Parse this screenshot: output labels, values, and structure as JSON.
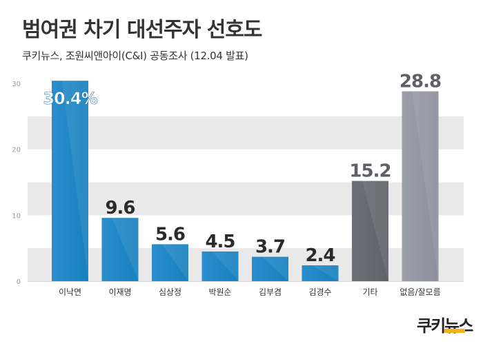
{
  "title": "범여권 차기 대선주자 선호도",
  "subtitle": "쿠키뉴스, 조원씨앤아이(C&I) 공동조사 (12.04 발표)",
  "logo": {
    "text": "쿠키뉴스",
    "accent_color": "#f6b21a"
  },
  "colors": {
    "blue": "#2b8dcd",
    "blue_dark": "#1780bd",
    "gray_dark": "#6d6f78",
    "gray_light": "#9d9eab",
    "band": "#e9e9ea",
    "label_blue": "#1c7fc0",
    "label_dark": "#2b2b2b",
    "label_gray": "#5f6066"
  },
  "chart_data": {
    "type": "bar",
    "categories": [
      "이낙연",
      "이재명",
      "심상정",
      "박원순",
      "김부겸",
      "김경수",
      "기타",
      "없음/잘모름"
    ],
    "values": [
      30.4,
      9.6,
      5.6,
      4.5,
      3.7,
      2.4,
      15.2,
      28.8
    ],
    "value_labels": [
      "30.4%",
      "9.6",
      "5.6",
      "4.5",
      "3.7",
      "2.4",
      "15.2",
      "28.8"
    ],
    "bar_styles": [
      "blue",
      "blue",
      "blue",
      "blue",
      "blue",
      "blue",
      "gray_dark",
      "gray_light"
    ],
    "yticks": [
      "0",
      "10",
      "20",
      "30"
    ],
    "ylim": [
      0,
      30
    ],
    "bands": [
      [
        0,
        5
      ],
      [
        10,
        15
      ],
      [
        20,
        25
      ]
    ],
    "grid": false,
    "legend": "none"
  }
}
